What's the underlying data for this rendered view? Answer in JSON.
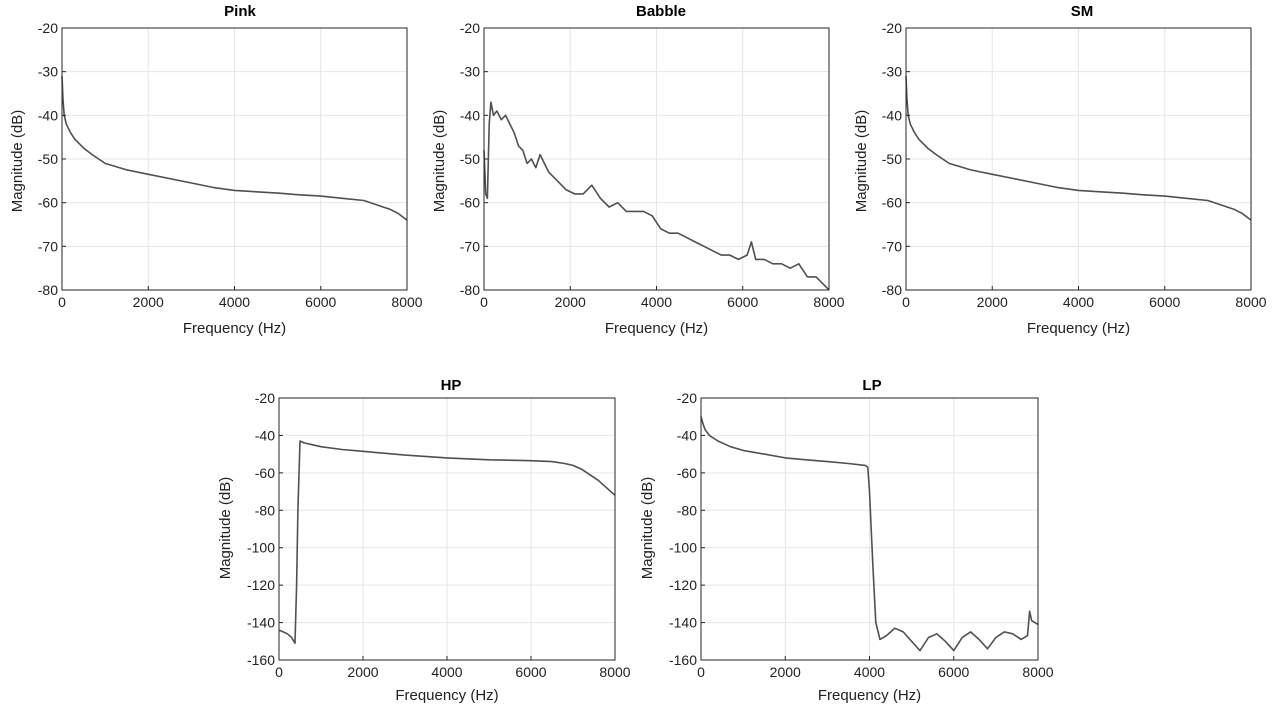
{
  "colors": {
    "line": "#505050",
    "grid": "#e6e6e6",
    "axis": "#262626"
  },
  "chart_data": [
    {
      "type": "line",
      "title": "Pink",
      "xlabel": "Frequency (Hz)",
      "ylabel": "Magnitude (dB)",
      "xlim": [
        0,
        8000
      ],
      "ylim": [
        -80,
        -20
      ],
      "xticks": [
        0,
        2000,
        4000,
        6000,
        8000
      ],
      "yticks": [
        -20,
        -30,
        -40,
        -50,
        -60,
        -70,
        -80
      ],
      "grid": true,
      "series": [
        {
          "x": [
            0,
            20,
            50,
            100,
            200,
            300,
            400,
            500,
            700,
            1000,
            1500,
            2000,
            2500,
            3000,
            3500,
            4000,
            4500,
            5000,
            5500,
            6000,
            6500,
            7000,
            7300,
            7600,
            7800,
            8000
          ],
          "values": [
            -31,
            -36,
            -40,
            -42,
            -44,
            -45.5,
            -46.5,
            -47.5,
            -49,
            -51,
            -52.5,
            -53.5,
            -54.5,
            -55.5,
            -56.5,
            -57.2,
            -57.5,
            -57.8,
            -58.2,
            -58.5,
            -59,
            -59.5,
            -60.5,
            -61.5,
            -62.5,
            -64
          ]
        }
      ]
    },
    {
      "type": "line",
      "title": "Babble",
      "xlabel": "Frequency (Hz)",
      "ylabel": "Magnitude (dB)",
      "xlim": [
        0,
        8000
      ],
      "ylim": [
        -80,
        -20
      ],
      "xticks": [
        0,
        2000,
        4000,
        6000,
        8000
      ],
      "yticks": [
        -20,
        -30,
        -40,
        -50,
        -60,
        -70,
        -80
      ],
      "grid": true,
      "series": [
        {
          "x": [
            0,
            40,
            80,
            120,
            160,
            220,
            300,
            400,
            500,
            600,
            700,
            800,
            900,
            1000,
            1100,
            1200,
            1300,
            1400,
            1500,
            1700,
            1900,
            2100,
            2300,
            2500,
            2700,
            2900,
            3100,
            3300,
            3500,
            3700,
            3900,
            4100,
            4300,
            4500,
            4700,
            4900,
            5100,
            5300,
            5500,
            5700,
            5900,
            6100,
            6200,
            6300,
            6500,
            6700,
            6900,
            7100,
            7300,
            7500,
            7700,
            7900,
            8000
          ],
          "values": [
            -48,
            -58,
            -59,
            -42,
            -37,
            -40,
            -39,
            -41,
            -40,
            -42,
            -44,
            -47,
            -48,
            -51,
            -50,
            -52,
            -49,
            -51,
            -53,
            -55,
            -57,
            -58,
            -58,
            -56,
            -59,
            -61,
            -60,
            -62,
            -62,
            -62,
            -63,
            -66,
            -67,
            -67,
            -68,
            -69,
            -70,
            -71,
            -72,
            -72,
            -73,
            -72,
            -69,
            -73,
            -73,
            -74,
            -74,
            -75,
            -74,
            -77,
            -77,
            -79,
            -80
          ]
        }
      ]
    },
    {
      "type": "line",
      "title": "SM",
      "xlabel": "Frequency (Hz)",
      "ylabel": "Magnitude (dB)",
      "xlim": [
        0,
        8000
      ],
      "ylim": [
        -80,
        -20
      ],
      "xticks": [
        0,
        2000,
        4000,
        6000,
        8000
      ],
      "yticks": [
        -20,
        -30,
        -40,
        -50,
        -60,
        -70,
        -80
      ],
      "grid": true,
      "series": [
        {
          "x": [
            0,
            20,
            50,
            100,
            200,
            300,
            400,
            500,
            700,
            1000,
            1500,
            2000,
            2500,
            3000,
            3500,
            4000,
            4500,
            5000,
            5500,
            6000,
            6500,
            7000,
            7300,
            7600,
            7800,
            8000
          ],
          "values": [
            -31,
            -36,
            -40,
            -42,
            -44,
            -45.5,
            -46.5,
            -47.5,
            -49,
            -51,
            -52.5,
            -53.5,
            -54.5,
            -55.5,
            -56.5,
            -57.2,
            -57.5,
            -57.8,
            -58.2,
            -58.5,
            -59,
            -59.5,
            -60.5,
            -61.5,
            -62.5,
            -64
          ]
        }
      ]
    },
    {
      "type": "line",
      "title": "HP",
      "xlabel": "Frequency (Hz)",
      "ylabel": "Magnitude (dB)",
      "xlim": [
        0,
        8000
      ],
      "ylim": [
        -160,
        -20
      ],
      "xticks": [
        0,
        2000,
        4000,
        6000,
        8000
      ],
      "yticks": [
        -20,
        -40,
        -60,
        -80,
        -100,
        -120,
        -140,
        -160
      ],
      "grid": true,
      "series": [
        {
          "x": [
            0,
            100,
            200,
            300,
            380,
            420,
            450,
            500,
            600,
            800,
            1000,
            1500,
            2000,
            3000,
            4000,
            5000,
            6000,
            6500,
            6800,
            7000,
            7200,
            7400,
            7600,
            7800,
            8000
          ],
          "values": [
            -144,
            -145,
            -146,
            -148,
            -151,
            -120,
            -80,
            -43,
            -44,
            -45,
            -46,
            -47.5,
            -48.5,
            -50.5,
            -52,
            -53,
            -53.5,
            -54,
            -55,
            -56,
            -58,
            -61,
            -64,
            -68,
            -72
          ]
        }
      ]
    },
    {
      "type": "line",
      "title": "LP",
      "xlabel": "Frequency (Hz)",
      "ylabel": "Magnitude (dB)",
      "xlim": [
        0,
        8000
      ],
      "ylim": [
        -160,
        -20
      ],
      "xticks": [
        0,
        2000,
        4000,
        6000,
        8000
      ],
      "yticks": [
        -20,
        -40,
        -60,
        -80,
        -100,
        -120,
        -140,
        -160
      ],
      "grid": true,
      "series": [
        {
          "x": [
            0,
            50,
            100,
            200,
            400,
            700,
            1000,
            1500,
            2000,
            2500,
            3000,
            3500,
            3900,
            3960,
            4000,
            4080,
            4150,
            4250,
            4400,
            4600,
            4800,
            5000,
            5200,
            5400,
            5600,
            5800,
            6000,
            6200,
            6400,
            6600,
            6800,
            7000,
            7200,
            7400,
            7600,
            7750,
            7800,
            7850,
            8000
          ],
          "values": [
            -30,
            -34,
            -37,
            -40,
            -43,
            -46,
            -48,
            -50,
            -52,
            -53,
            -54,
            -55,
            -56,
            -57,
            -70,
            -110,
            -140,
            -149,
            -147,
            -143,
            -145,
            -150,
            -155,
            -148,
            -146,
            -150,
            -155,
            -148,
            -145,
            -149,
            -154,
            -148,
            -145,
            -146,
            -149,
            -147,
            -134,
            -139,
            -141
          ]
        }
      ]
    }
  ]
}
